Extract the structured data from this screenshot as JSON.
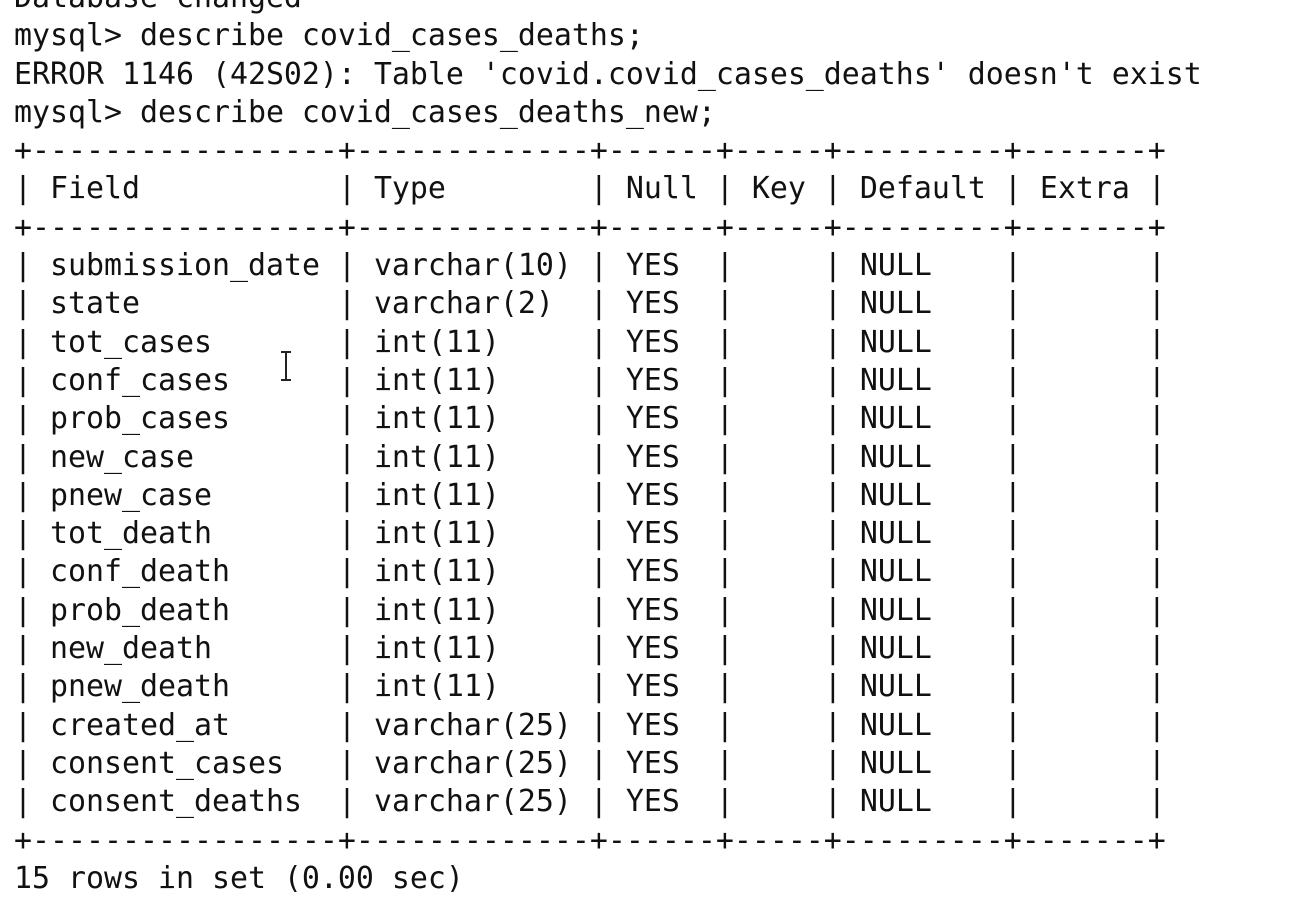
{
  "terminal": {
    "lines": [
      "Database changed",
      "mysql> describe covid_cases_deaths;",
      "ERROR 1146 (42S02): Table 'covid.covid_cases_deaths' doesn't exist",
      "mysql> describe covid_cases_deaths_new;"
    ],
    "table": {
      "columns": [
        "Field",
        "Type",
        "Null",
        "Key",
        "Default",
        "Extra"
      ],
      "rows": [
        [
          "submission_date",
          "varchar(10)",
          "YES",
          null,
          "NULL",
          null
        ],
        [
          "state",
          "varchar(2)",
          "YES",
          null,
          "NULL",
          null
        ],
        [
          "tot_cases",
          "int(11)",
          "YES",
          null,
          "NULL",
          null
        ],
        [
          "conf_cases",
          "int(11)",
          "YES",
          null,
          "NULL",
          null
        ],
        [
          "prob_cases",
          "int(11)",
          "YES",
          null,
          "NULL",
          null
        ],
        [
          "new_case",
          "int(11)",
          "YES",
          null,
          "NULL",
          null
        ],
        [
          "pnew_case",
          "int(11)",
          "YES",
          null,
          "NULL",
          null
        ],
        [
          "tot_death",
          "int(11)",
          "YES",
          null,
          "NULL",
          null
        ],
        [
          "conf_death",
          "int(11)",
          "YES",
          null,
          "NULL",
          null
        ],
        [
          "prob_death",
          "int(11)",
          "YES",
          null,
          "NULL",
          null
        ],
        [
          "new_death",
          "int(11)",
          "YES",
          null,
          "NULL",
          null
        ],
        [
          "pnew_death",
          "int(11)",
          "YES",
          null,
          "NULL",
          null
        ],
        [
          "created_at",
          "varchar(25)",
          "YES",
          null,
          "NULL",
          null
        ],
        [
          "consent_cases",
          "varchar(25)",
          "YES",
          null,
          "NULL",
          null
        ],
        [
          "consent_deaths",
          "varchar(25)",
          "YES",
          null,
          "NULL",
          null
        ]
      ]
    },
    "footer": "15 rows in set (0.00 sec)"
  }
}
